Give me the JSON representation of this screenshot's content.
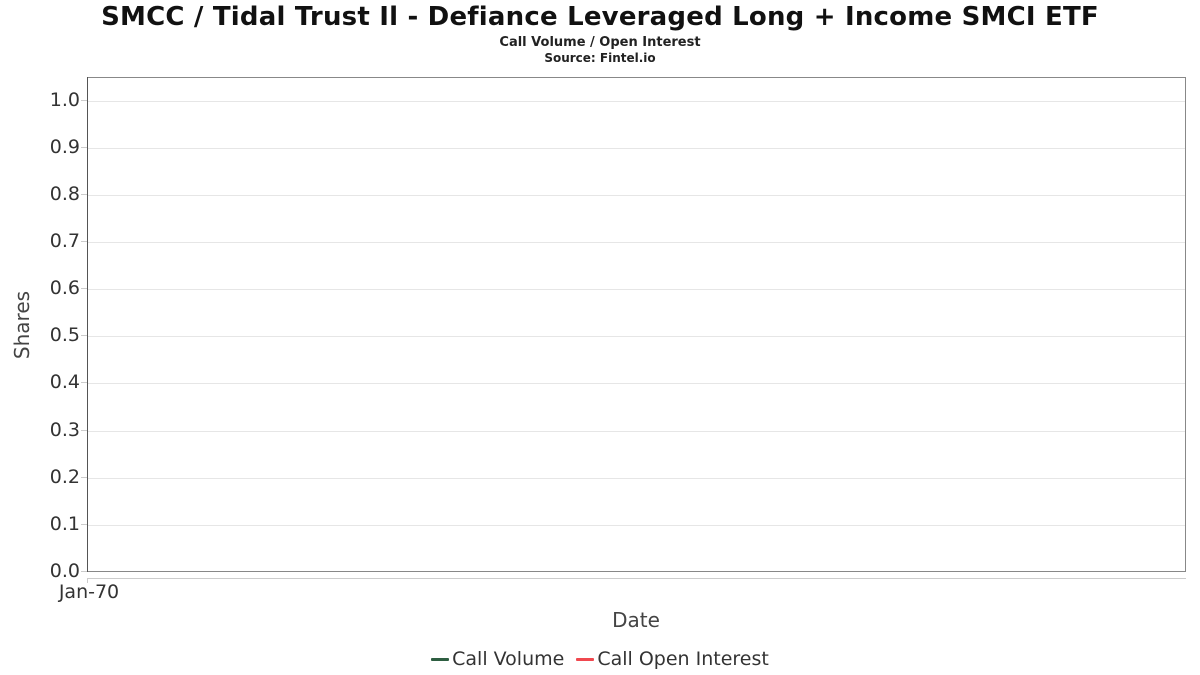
{
  "header": {
    "title": "SMCC / Tidal Trust Il - Defiance Leveraged Long + Income SMCI ETF",
    "subtitle": "Call Volume / Open Interest",
    "source": "Source: Fintel.io"
  },
  "chart_data": {
    "type": "line",
    "title": "SMCC / Tidal Trust Il - Defiance Leveraged Long + Income SMCI ETF",
    "subtitle": "Call Volume / Open Interest",
    "source": "Source: Fintel.io",
    "xlabel": "Date",
    "ylabel": "Shares",
    "x_ticks": [
      "Jan-70"
    ],
    "y_ticks": [
      "0.0",
      "0.1",
      "0.2",
      "0.3",
      "0.4",
      "0.5",
      "0.6",
      "0.7",
      "0.8",
      "0.9",
      "1.0"
    ],
    "ylim": [
      0.0,
      1.05
    ],
    "grid": "horizontal-only",
    "gridline_color": "#e6e6e6",
    "plot_border_color": "#888888",
    "legend_position": "bottom-center",
    "series": [
      {
        "name": "Call Volume",
        "color": "#2e5e41",
        "values": []
      },
      {
        "name": "Call Open Interest",
        "color": "#f0484f",
        "values": []
      }
    ]
  }
}
